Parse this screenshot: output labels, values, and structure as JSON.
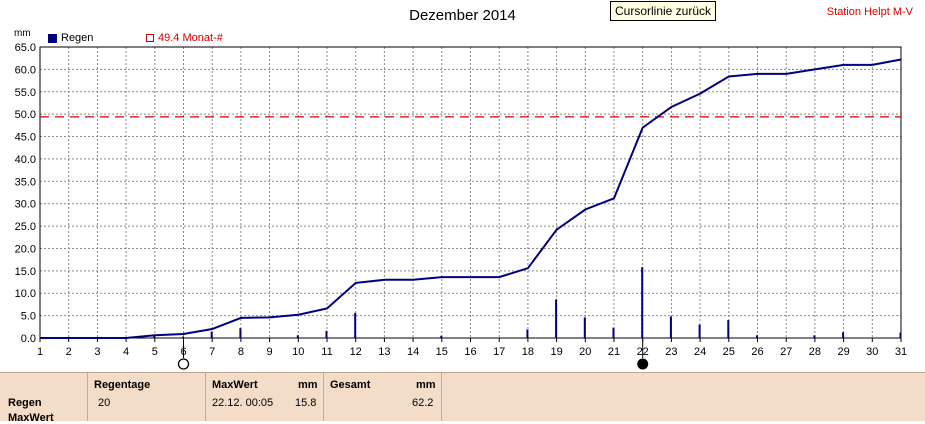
{
  "header": {
    "title": "Dezember 2014",
    "tooltip": "Cursorlinie zurück",
    "station": "Station Helpt M-V"
  },
  "legend": {
    "unit": "mm",
    "rain_label": "Regen",
    "reference_label": "49.4 Monat-#"
  },
  "colors": {
    "series": "#00007f",
    "reference": "#d40000",
    "grid": "#888888",
    "panel": "#f3dcc8"
  },
  "chart_data": {
    "type": "bar",
    "xlim": [
      1,
      31
    ],
    "ylim": [
      0,
      65
    ],
    "x_ticks": [
      1,
      2,
      3,
      4,
      5,
      6,
      7,
      8,
      9,
      10,
      11,
      12,
      13,
      14,
      15,
      16,
      17,
      18,
      19,
      20,
      21,
      22,
      23,
      24,
      25,
      26,
      27,
      28,
      29,
      30,
      31
    ],
    "y_ticks": [
      "0.0",
      "5.0",
      "10.0",
      "15.0",
      "20.0",
      "25.0",
      "30.0",
      "35.0",
      "40.0",
      "45.0",
      "50.0",
      "55.0",
      "60.0",
      "65.0"
    ],
    "grid": true,
    "reference_line": 49.4,
    "daily_rain": {
      "x": [
        5,
        6,
        7,
        8,
        10,
        11,
        12,
        15,
        18,
        19,
        20,
        21,
        22,
        23,
        24,
        25,
        26,
        28,
        29,
        31
      ],
      "values": [
        0.6,
        0.3,
        1.4,
        2.2,
        0.6,
        1.6,
        5.6,
        0.5,
        1.9,
        8.6,
        4.6,
        2.3,
        15.8,
        4.8,
        3.0,
        4.0,
        0.6,
        0.6,
        1.3,
        1.2
      ]
    },
    "cumulative": {
      "x": [
        1,
        2,
        3,
        4,
        5,
        6,
        7,
        8,
        9,
        10,
        11,
        12,
        13,
        14,
        15,
        16,
        17,
        18,
        19,
        20,
        21,
        22,
        23,
        24,
        25,
        26,
        27,
        28,
        29,
        30,
        31
      ],
      "values": [
        0,
        0,
        0,
        0,
        0.6,
        0.9,
        2.0,
        4.5,
        4.6,
        5.2,
        6.6,
        12.3,
        13.0,
        13.0,
        13.6,
        13.6,
        13.6,
        15.6,
        24.2,
        28.7,
        31.2,
        47.0,
        51.6,
        54.6,
        58.4,
        59.0,
        59.0,
        60.0,
        61.0,
        61.0,
        62.2
      ]
    },
    "markers": {
      "open_circle_day": 6,
      "filled_circle_day": 22
    }
  },
  "panel": {
    "row_labels": [
      "Regen",
      "MaxWert"
    ],
    "regentage_header": "Regentage",
    "regentage_value": "20",
    "maxwert_header": "MaxWert",
    "maxwert_unit": "mm",
    "maxwert_date": "22.12.  00:05",
    "maxwert_value": "15.8",
    "gesamt_header": "Gesamt",
    "gesamt_unit": "mm",
    "gesamt_value": "62.2"
  }
}
